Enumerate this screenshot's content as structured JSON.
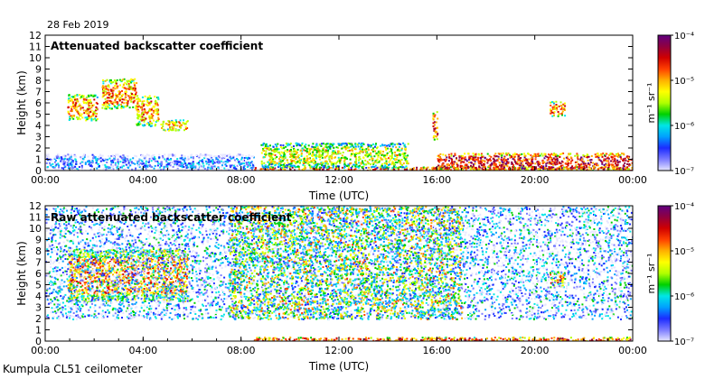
{
  "date_label": "28 Feb 2019",
  "footer_label": "Kumpula CL51 ceilometer",
  "panels": [
    {
      "title": "Attenuated backscatter coefficient",
      "xlabel": "Time (UTC)",
      "ylabel": "Height (km)"
    },
    {
      "title": "Raw attenuated backscatter coefficient",
      "xlabel": "Time (UTC)",
      "ylabel": "Height (km)"
    }
  ],
  "colorbar": {
    "unit": "m⁻¹ sr⁻¹",
    "ticks": [
      "10⁻⁴",
      "10⁻⁵",
      "10⁻⁶",
      "10⁻⁷"
    ],
    "exponents": [
      -4,
      -5,
      -6,
      -7
    ],
    "range": [
      -7,
      -4
    ],
    "colors": [
      "#e6e6ff",
      "#7b7bff",
      "#1c2cff",
      "#00a0ff",
      "#00e6e6",
      "#00d000",
      "#b0ff00",
      "#ffff00",
      "#ffb000",
      "#ff4000",
      "#d00000",
      "#900040",
      "#600080"
    ]
  },
  "chart_data": [
    {
      "type": "heatmap",
      "title": "Attenuated backscatter coefficient",
      "xlabel": "Time (UTC)",
      "ylabel": "Height (km)",
      "x_ticks": [
        "00:00",
        "04:00",
        "08:00",
        "12:00",
        "16:00",
        "20:00",
        "00:00"
      ],
      "x_hours": [
        0,
        4,
        8,
        12,
        16,
        20,
        24
      ],
      "y_ticks": [
        0,
        1,
        2,
        3,
        4,
        5,
        6,
        7,
        8,
        9,
        10,
        11,
        12
      ],
      "xlim": [
        0,
        24
      ],
      "ylim": [
        0,
        12
      ],
      "color_scale": "log10 backscatter, 1e-7 to 1e-4 m-1 sr-1",
      "features": [
        {
          "name": "boundary-layer aerosol",
          "t_start": 0,
          "t_end": 8.5,
          "h_bottom": 0,
          "h_top": 1.5,
          "log_value": -6.6
        },
        {
          "name": "surface layer",
          "t_start": 8.5,
          "t_end": 24,
          "h_bottom": 0,
          "h_top": 0.4,
          "log_value": -5.0
        },
        {
          "name": "mid-level cloud",
          "t_start": 0.9,
          "t_end": 2.1,
          "h_bottom": 4.5,
          "h_top": 6.8,
          "log_value": -5.2
        },
        {
          "name": "mid-level cloud",
          "t_start": 2.3,
          "t_end": 3.7,
          "h_bottom": 5.5,
          "h_top": 8.2,
          "log_value": -5.2
        },
        {
          "name": "mid-level cloud",
          "t_start": 3.7,
          "t_end": 4.6,
          "h_bottom": 4.0,
          "h_top": 6.7,
          "log_value": -5.3
        },
        {
          "name": "mid-level cloud",
          "t_start": 4.7,
          "t_end": 5.8,
          "h_bottom": 3.6,
          "h_top": 4.6,
          "log_value": -5.4
        },
        {
          "name": "convective plumes",
          "t_start": 8.8,
          "t_end": 14.8,
          "h_bottom": 0.3,
          "h_top": 2.5,
          "log_value": -5.6
        },
        {
          "name": "precipitation streak",
          "t_start": 15.8,
          "t_end": 16.0,
          "h_bottom": 2.8,
          "h_top": 5.5,
          "log_value": -5.0
        },
        {
          "name": "high cloud",
          "t_start": 20.6,
          "t_end": 21.2,
          "h_bottom": 4.8,
          "h_top": 6.2,
          "log_value": -5.2
        },
        {
          "name": "evening surface layer",
          "t_start": 16.0,
          "t_end": 24,
          "h_bottom": 0,
          "h_top": 1.6,
          "log_value": -4.8
        }
      ]
    },
    {
      "type": "heatmap",
      "title": "Raw attenuated backscatter coefficient",
      "xlabel": "Time (UTC)",
      "ylabel": "Height (km)",
      "x_ticks": [
        "00:00",
        "04:00",
        "08:00",
        "12:00",
        "16:00",
        "20:00",
        "00:00"
      ],
      "x_hours": [
        0,
        4,
        8,
        12,
        16,
        20,
        24
      ],
      "y_ticks": [
        0,
        1,
        2,
        3,
        4,
        5,
        6,
        7,
        8,
        9,
        10,
        11,
        12
      ],
      "xlim": [
        0,
        24
      ],
      "ylim": [
        0,
        12
      ],
      "color_scale": "log10 backscatter, 1e-7 to 1e-4 m-1 sr-1",
      "features": [
        {
          "name": "daytime solar background noise",
          "t_start": 7.5,
          "t_end": 17,
          "h_bottom": 2,
          "h_top": 12,
          "log_value": -5.6
        },
        {
          "name": "night noise",
          "t_start": 0,
          "t_end": 24,
          "h_bottom": 2,
          "h_top": 12,
          "log_value": -6.5
        },
        {
          "name": "mid-level cloud",
          "t_start": 0.9,
          "t_end": 5.8,
          "h_bottom": 3.6,
          "h_top": 8.2,
          "log_value": -5.2
        },
        {
          "name": "surface layer",
          "t_start": 8.5,
          "t_end": 24,
          "h_bottom": 0,
          "h_top": 0.4,
          "log_value": -5.0
        },
        {
          "name": "high cloud",
          "t_start": 20.6,
          "t_end": 21.2,
          "h_bottom": 4.8,
          "h_top": 6.2,
          "log_value": -5.2
        }
      ]
    }
  ]
}
